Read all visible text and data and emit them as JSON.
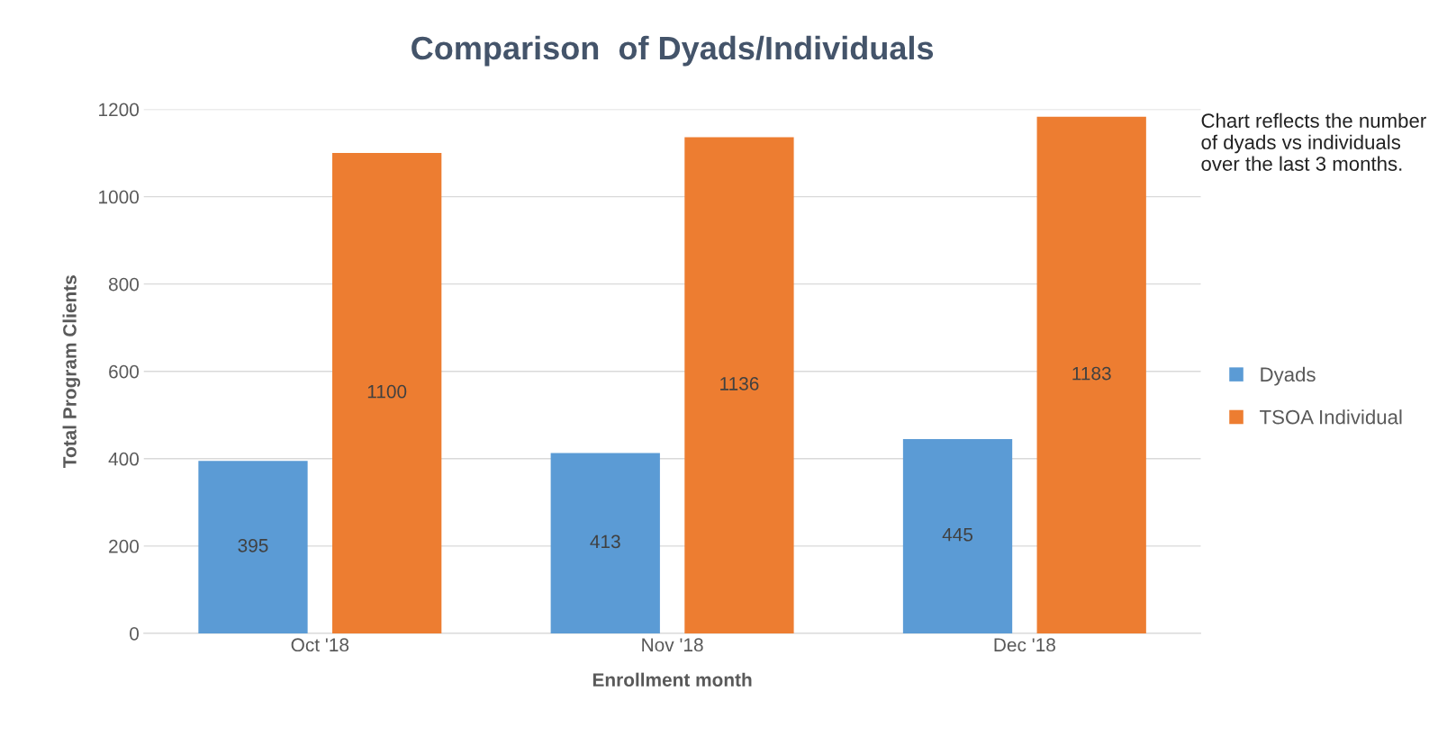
{
  "chart_data": {
    "type": "bar",
    "title": "Comparison  of Dyads/Individuals",
    "xlabel": "Enrollment month",
    "ylabel": "Total Program Clients",
    "categories": [
      "Oct '18",
      "Nov '18",
      "Dec '18"
    ],
    "series": [
      {
        "name": "Dyads",
        "color": "#5b9bd5",
        "values": [
          395,
          413,
          445
        ]
      },
      {
        "name": "TSOA Individual",
        "color": "#ed7d31",
        "values": [
          1100,
          1136,
          1183
        ]
      }
    ],
    "ylim": [
      0,
      1200
    ],
    "yticks": [
      0,
      200,
      400,
      600,
      800,
      1000,
      1200
    ],
    "grid": "y",
    "legend": "right",
    "data_labels": true,
    "annotations": [
      "Chart reflects the number of dyads vs individuals over the last 3 months."
    ]
  }
}
